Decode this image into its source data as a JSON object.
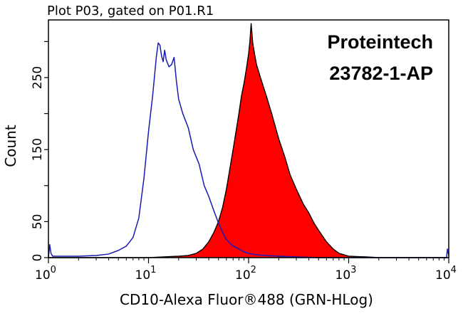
{
  "chart_data": {
    "type": "area",
    "title": "Plot P03, gated on P01.R1",
    "xlabel": "CD10-Alexa Fluor®488 (GRN-HLog)",
    "ylabel": "Count",
    "x_scale": "log",
    "xlim": [
      1,
      10000
    ],
    "ylim": [
      0,
      330
    ],
    "grid": false,
    "x_ticks": [
      {
        "base": "10",
        "exp": "0",
        "value": 1
      },
      {
        "base": "10",
        "exp": "1",
        "value": 10
      },
      {
        "base": "10",
        "exp": "2",
        "value": 100
      },
      {
        "base": "10",
        "exp": "3",
        "value": 1000
      },
      {
        "base": "10",
        "exp": "4",
        "value": 10000
      }
    ],
    "y_ticks": [
      {
        "label": "0",
        "value": 0
      },
      {
        "label": "50",
        "value": 50
      },
      {
        "label": "150",
        "value": 150
      },
      {
        "label": "250",
        "value": 250
      }
    ],
    "annotations": [
      "Proteintech",
      "23782-1-AP"
    ],
    "series": [
      {
        "style": "outline",
        "color": "#1a1ab4",
        "x": [
          1,
          1.03,
          1.06,
          1.1,
          1.5,
          2,
          3,
          4,
          5,
          6,
          7,
          8,
          9,
          10,
          11,
          12,
          12.5,
          13,
          13.5,
          14,
          14.5,
          15,
          16,
          17,
          18,
          19,
          20,
          22,
          25,
          28,
          32,
          36,
          40,
          45,
          50,
          55,
          60,
          70,
          80,
          90,
          100,
          120,
          150,
          200,
          300,
          500,
          1000,
          2000,
          5000,
          9500,
          9700,
          10000
        ],
        "y": [
          0,
          18,
          6,
          2,
          2,
          2,
          3,
          5,
          10,
          16,
          28,
          55,
          110,
          175,
          225,
          280,
          298,
          295,
          280,
          272,
          288,
          275,
          265,
          268,
          278,
          245,
          220,
          200,
          180,
          150,
          130,
          100,
          85,
          65,
          48,
          35,
          25,
          16,
          12,
          8,
          6,
          4,
          3,
          2,
          1,
          0,
          0,
          0,
          0,
          0,
          12,
          3
        ]
      },
      {
        "style": "filled",
        "color": "#ff0000",
        "x": [
          1,
          10,
          20,
          25,
          30,
          35,
          40,
          45,
          50,
          55,
          60,
          70,
          80,
          85,
          90,
          95,
          100,
          103,
          106,
          110,
          115,
          120,
          130,
          140,
          150,
          170,
          200,
          230,
          260,
          300,
          350,
          400,
          450,
          500,
          600,
          700,
          800,
          1000,
          1500,
          2000,
          10000
        ],
        "y": [
          0,
          0,
          2,
          3,
          6,
          12,
          22,
          35,
          50,
          70,
          95,
          150,
          200,
          225,
          242,
          262,
          283,
          300,
          325,
          298,
          282,
          268,
          252,
          238,
          225,
          200,
          165,
          140,
          115,
          95,
          75,
          62,
          48,
          38,
          22,
          12,
          6,
          2,
          1,
          0,
          0
        ]
      }
    ]
  }
}
